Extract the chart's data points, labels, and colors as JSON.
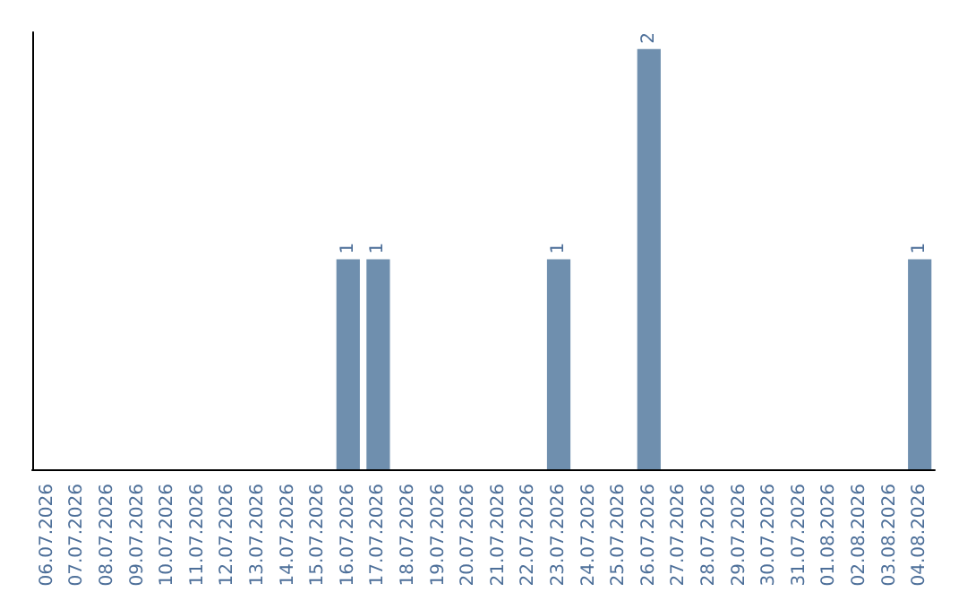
{
  "chart_data": {
    "type": "bar",
    "categories": [
      "06.07.2026",
      "07.07.2026",
      "08.07.2026",
      "09.07.2026",
      "10.07.2026",
      "11.07.2026",
      "12.07.2026",
      "13.07.2026",
      "14.07.2026",
      "15.07.2026",
      "16.07.2026",
      "17.07.2026",
      "18.07.2026",
      "19.07.2026",
      "20.07.2026",
      "21.07.2026",
      "22.07.2026",
      "23.07.2026",
      "24.07.2026",
      "25.07.2026",
      "26.07.2026",
      "27.07.2026",
      "28.07.2026",
      "29.07.2026",
      "30.07.2026",
      "31.07.2026",
      "01.08.2026",
      "02.08.2026",
      "03.08.2026",
      "04.08.2026"
    ],
    "values": [
      0,
      0,
      0,
      0,
      0,
      0,
      0,
      0,
      0,
      0,
      1,
      1,
      0,
      0,
      0,
      0,
      0,
      1,
      0,
      0,
      2,
      0,
      0,
      0,
      0,
      0,
      0,
      0,
      0,
      1
    ],
    "value_labels": [
      null,
      null,
      null,
      null,
      null,
      null,
      null,
      null,
      null,
      null,
      "1",
      "1",
      null,
      null,
      null,
      null,
      null,
      "1",
      null,
      null,
      "2",
      null,
      null,
      null,
      null,
      null,
      null,
      null,
      null,
      "1"
    ],
    "color": "#6f8fae",
    "tick_labels": "x",
    "grid": false
  }
}
